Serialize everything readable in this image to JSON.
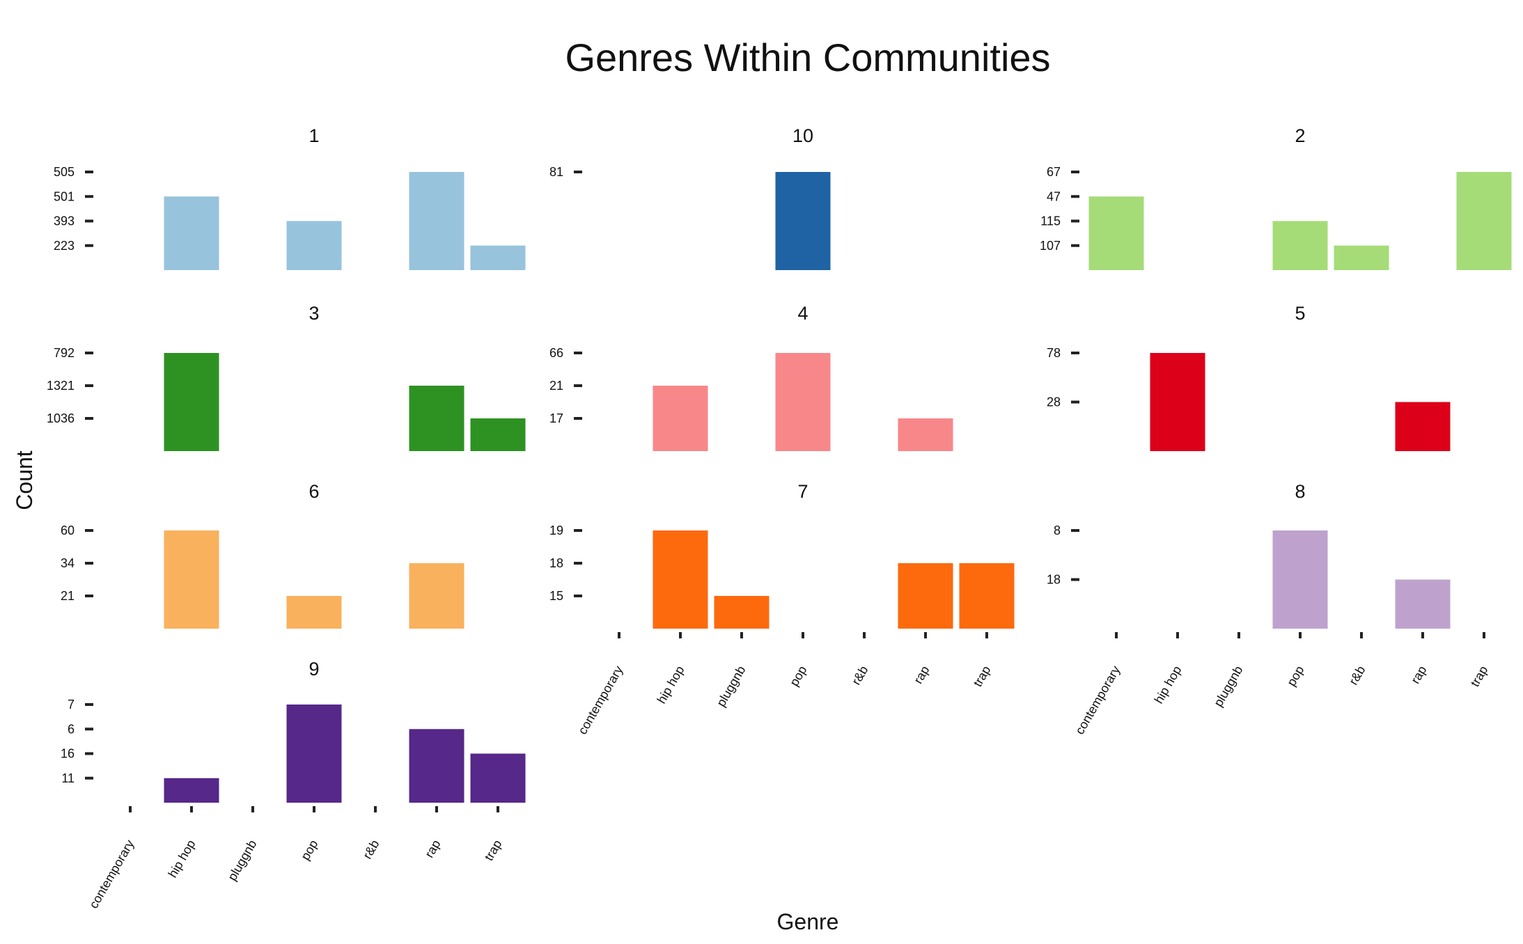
{
  "chart_data": {
    "type": "bar",
    "title": "Genres Within Communities",
    "x_label": "Genre",
    "y_label": "Count",
    "categories": [
      "contemporary",
      "hip hop",
      "pluggnb",
      "pop",
      "r&b",
      "rap",
      "trap"
    ],
    "panels": [
      {
        "title": "1",
        "color": "#97c3dc",
        "yticks": [
          223,
          393,
          501,
          505
        ],
        "values": [
          null,
          501,
          null,
          393,
          null,
          505,
          223
        ]
      },
      {
        "title": "10",
        "color": "#1f63a5",
        "yticks": [
          81
        ],
        "values": [
          null,
          null,
          null,
          81,
          null,
          null,
          null
        ]
      },
      {
        "title": "2",
        "color": "#a5dc78",
        "yticks": [
          107,
          115,
          47,
          67
        ],
        "values": [
          47,
          null,
          null,
          115,
          107,
          null,
          67
        ]
      },
      {
        "title": "3",
        "color": "#2e9223",
        "yticks": [
          1036,
          1321,
          792
        ],
        "values": [
          null,
          792,
          null,
          null,
          null,
          1321,
          1036
        ]
      },
      {
        "title": "4",
        "color": "#f8878a",
        "yticks": [
          17,
          21,
          66
        ],
        "values": [
          null,
          21,
          null,
          66,
          null,
          17,
          null
        ]
      },
      {
        "title": "5",
        "color": "#dd0019",
        "yticks": [
          28,
          78
        ],
        "values": [
          null,
          78,
          null,
          null,
          null,
          28,
          null
        ]
      },
      {
        "title": "6",
        "color": "#f9b15d",
        "yticks": [
          21,
          34,
          60
        ],
        "values": [
          null,
          60,
          null,
          21,
          null,
          34,
          null
        ]
      },
      {
        "title": "7",
        "color": "#fd6a0e",
        "yticks": [
          15,
          18,
          19
        ],
        "values": [
          null,
          19,
          15,
          null,
          null,
          18,
          18
        ]
      },
      {
        "title": "8",
        "color": "#bea2cd",
        "yticks": [
          18,
          8
        ],
        "values": [
          null,
          null,
          null,
          8,
          null,
          18,
          null
        ]
      },
      {
        "title": "9",
        "color": "#552889",
        "yticks": [
          11,
          16,
          6,
          7
        ],
        "values": [
          null,
          11,
          null,
          7,
          null,
          6,
          16
        ]
      }
    ]
  }
}
